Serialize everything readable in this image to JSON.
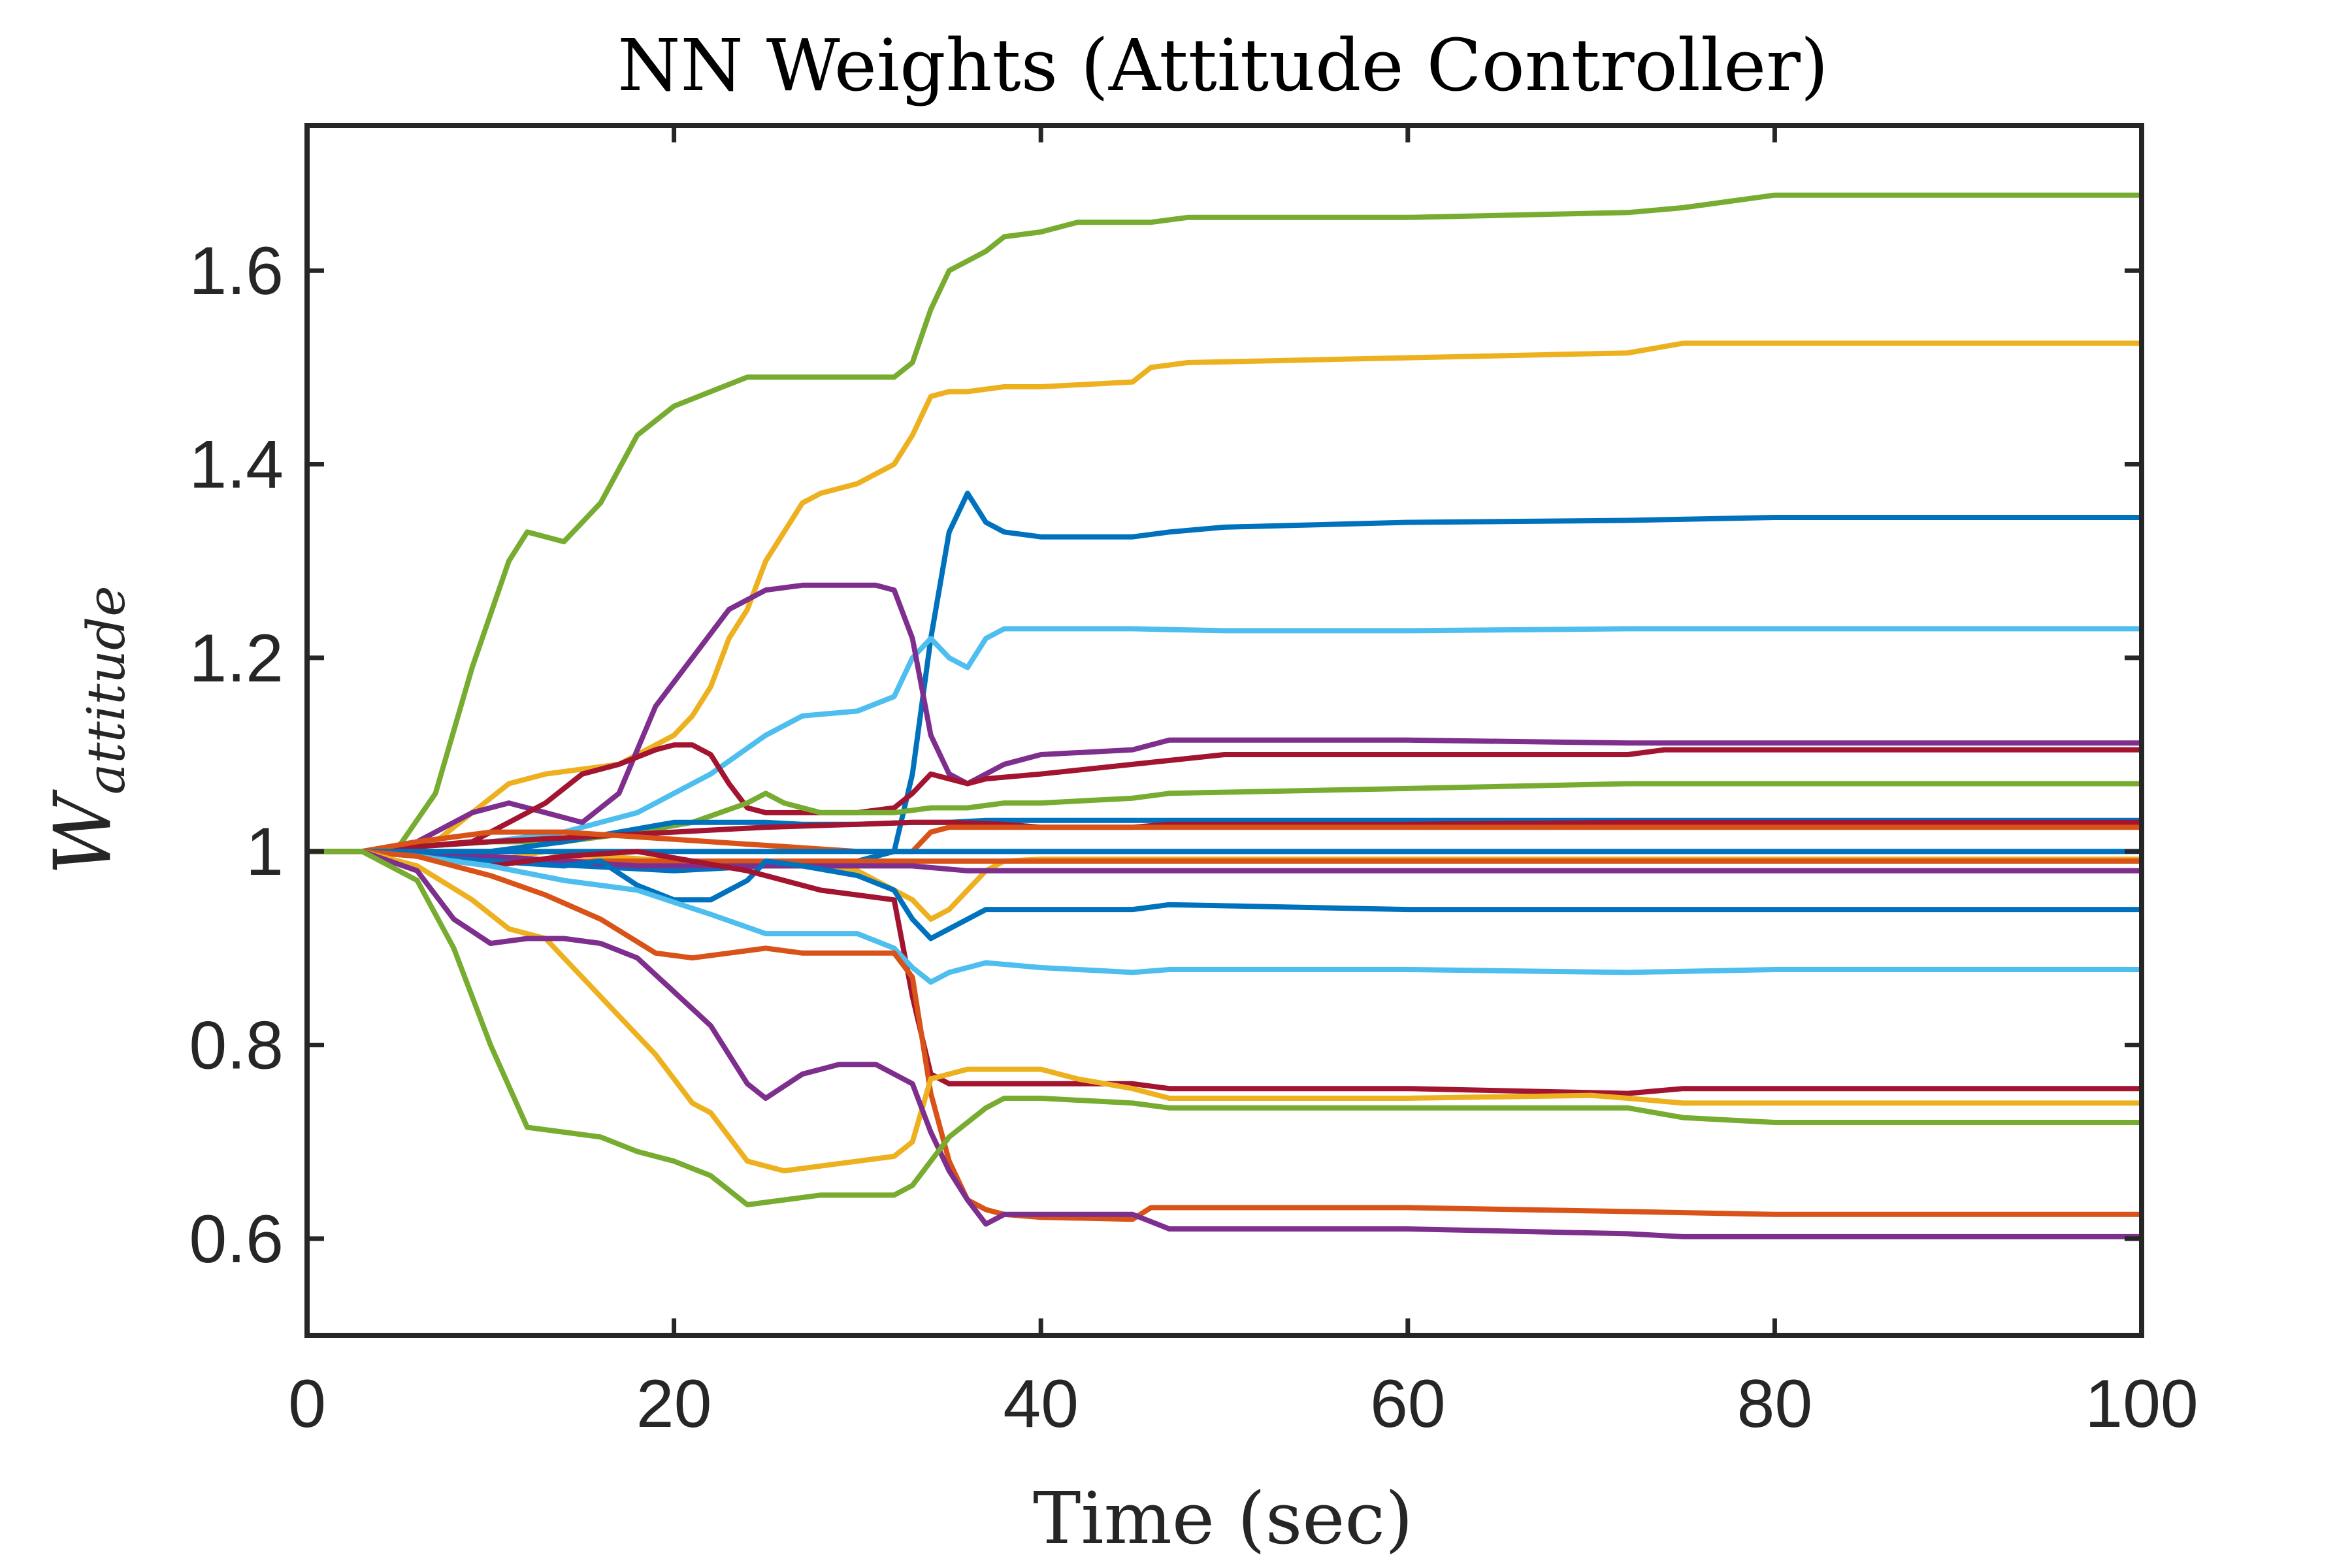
{
  "chart_data": {
    "type": "line",
    "title": "NN Weights (Attitude Controller)",
    "xlabel": "Time (sec)",
    "ylabel": {
      "main": "W",
      "sub": "attitude"
    },
    "xlim": [
      0,
      100
    ],
    "ylim": [
      0.5,
      1.75
    ],
    "xticks": [
      0,
      20,
      40,
      60,
      80,
      100
    ],
    "xtick_labels": [
      "0",
      "20",
      "40",
      "60",
      "80",
      "100"
    ],
    "yticks": [
      0.6,
      0.8,
      1.0,
      1.2,
      1.4,
      1.6
    ],
    "ytick_labels": [
      "0.6",
      "0.8",
      "1",
      "1.2",
      "1.4",
      "1.6"
    ],
    "grid": false,
    "legend": "none",
    "colors": {
      "blue": "#0072BD",
      "orange": "#D95319",
      "yellow": "#EDB120",
      "purple": "#7E2F8E",
      "green": "#77AC30",
      "cyan": "#4DBEEE",
      "red": "#A2142F"
    },
    "series": [
      {
        "color": "green",
        "x": [
          0,
          3,
          5,
          7,
          9,
          11,
          12,
          14,
          16,
          18,
          20,
          22,
          24,
          26,
          28,
          30,
          32,
          33,
          34,
          35,
          36,
          37,
          38,
          40,
          42,
          44,
          46,
          48,
          60,
          72,
          75,
          80,
          100
        ],
        "y": [
          1,
          1,
          1.005,
          1.06,
          1.19,
          1.3,
          1.33,
          1.32,
          1.36,
          1.43,
          1.46,
          1.475,
          1.49,
          1.49,
          1.49,
          1.49,
          1.49,
          1.505,
          1.56,
          1.6,
          1.61,
          1.62,
          1.635,
          1.64,
          1.65,
          1.65,
          1.65,
          1.655,
          1.655,
          1.66,
          1.665,
          1.678,
          1.678
        ]
      },
      {
        "color": "yellow",
        "x": [
          0,
          3,
          5,
          7,
          9,
          11,
          13,
          15,
          17,
          19,
          20,
          21,
          22,
          23,
          24,
          25,
          26,
          27,
          28,
          30,
          32,
          33,
          34,
          35,
          36,
          38,
          40,
          45,
          46,
          48,
          60,
          72,
          75,
          80,
          100
        ],
        "y": [
          1,
          1,
          1.005,
          1.01,
          1.04,
          1.07,
          1.08,
          1.085,
          1.09,
          1.11,
          1.12,
          1.14,
          1.17,
          1.22,
          1.25,
          1.3,
          1.33,
          1.36,
          1.37,
          1.38,
          1.4,
          1.43,
          1.47,
          1.475,
          1.475,
          1.48,
          1.48,
          1.485,
          1.5,
          1.505,
          1.51,
          1.515,
          1.525,
          1.525,
          1.525
        ]
      },
      {
        "color": "blue",
        "x": [
          0,
          3,
          6,
          10,
          15,
          20,
          25,
          30,
          32,
          33,
          34,
          35,
          36,
          37,
          38,
          40,
          45,
          47,
          50,
          60,
          72,
          80,
          100
        ],
        "y": [
          1,
          1,
          0.995,
          0.99,
          0.985,
          0.98,
          0.985,
          0.99,
          1.0,
          1.08,
          1.22,
          1.33,
          1.37,
          1.34,
          1.33,
          1.325,
          1.325,
          1.33,
          1.335,
          1.34,
          1.342,
          1.345,
          1.345
        ]
      },
      {
        "color": "cyan",
        "x": [
          0,
          3,
          6,
          10,
          14,
          18,
          22,
          25,
          27,
          30,
          32,
          33,
          34,
          35,
          36,
          37,
          38,
          40,
          45,
          50,
          60,
          72,
          100
        ],
        "y": [
          1,
          1,
          1.005,
          1.01,
          1.02,
          1.04,
          1.08,
          1.12,
          1.14,
          1.145,
          1.16,
          1.2,
          1.22,
          1.2,
          1.19,
          1.22,
          1.23,
          1.23,
          1.23,
          1.228,
          1.228,
          1.23,
          1.23
        ]
      },
      {
        "color": "purple",
        "x": [
          0,
          3,
          6,
          9,
          11,
          13,
          15,
          17,
          19,
          21,
          23,
          25,
          27,
          29,
          31,
          32,
          33,
          34,
          35,
          36,
          37,
          38,
          40,
          45,
          47,
          60,
          72,
          80,
          100
        ],
        "y": [
          1,
          1,
          1.01,
          1.04,
          1.05,
          1.04,
          1.03,
          1.06,
          1.15,
          1.2,
          1.25,
          1.27,
          1.275,
          1.275,
          1.275,
          1.27,
          1.22,
          1.12,
          1.08,
          1.07,
          1.08,
          1.09,
          1.1,
          1.105,
          1.115,
          1.115,
          1.112,
          1.112,
          1.112
        ]
      },
      {
        "color": "red",
        "x": [
          0,
          3,
          6,
          9,
          11,
          13,
          15,
          17,
          19,
          20,
          21,
          22,
          23,
          24,
          25,
          27,
          30,
          32,
          33,
          34,
          35,
          36,
          37,
          40,
          45,
          50,
          60,
          72,
          74,
          80,
          100
        ],
        "y": [
          1,
          1,
          1.005,
          1.01,
          1.03,
          1.05,
          1.08,
          1.09,
          1.105,
          1.11,
          1.11,
          1.1,
          1.07,
          1.045,
          1.04,
          1.04,
          1.04,
          1.045,
          1.06,
          1.08,
          1.075,
          1.07,
          1.075,
          1.08,
          1.09,
          1.1,
          1.1,
          1.1,
          1.105,
          1.105,
          1.105
        ]
      },
      {
        "color": "green",
        "x": [
          0,
          3,
          6,
          10,
          14,
          18,
          21,
          24,
          25,
          26,
          28,
          30,
          32,
          34,
          36,
          38,
          40,
          45,
          47,
          60,
          72,
          80,
          100
        ],
        "y": [
          1,
          1,
          1.005,
          1.01,
          1.01,
          1.02,
          1.03,
          1.05,
          1.06,
          1.05,
          1.04,
          1.04,
          1.04,
          1.045,
          1.045,
          1.05,
          1.05,
          1.055,
          1.06,
          1.065,
          1.07,
          1.07,
          1.07
        ]
      },
      {
        "color": "blue",
        "x": [
          0,
          3,
          6,
          10,
          14,
          17,
          20,
          23,
          25,
          27,
          30,
          33,
          35,
          37,
          40,
          45,
          50,
          60,
          72,
          80,
          100
        ],
        "y": [
          1,
          1,
          1.0,
          1.0,
          1.01,
          1.02,
          1.03,
          1.03,
          1.03,
          1.028,
          1.028,
          1.03,
          1.03,
          1.032,
          1.032,
          1.032,
          1.032,
          1.032,
          1.032,
          1.032,
          1.032
        ]
      },
      {
        "color": "red",
        "x": [
          0,
          3,
          6,
          10,
          15,
          20,
          25,
          30,
          33,
          35,
          38,
          40,
          45,
          47,
          60,
          72,
          80,
          100
        ],
        "y": [
          1,
          1,
          1.005,
          1.01,
          1.015,
          1.02,
          1.025,
          1.028,
          1.03,
          1.03,
          1.028,
          1.025,
          1.025,
          1.028,
          1.028,
          1.03,
          1.03,
          1.03
        ]
      },
      {
        "color": "orange",
        "x": [
          0,
          3,
          6,
          10,
          14,
          18,
          22,
          26,
          30,
          33,
          34,
          35,
          37,
          40,
          45,
          47,
          60,
          72,
          80,
          100
        ],
        "y": [
          1,
          1,
          1.01,
          1.02,
          1.02,
          1.015,
          1.01,
          1.005,
          1.0,
          1.0,
          1.02,
          1.025,
          1.025,
          1.025,
          1.025,
          1.025,
          1.025,
          1.025,
          1.025,
          1.025
        ]
      },
      {
        "color": "yellow",
        "x": [
          0,
          3,
          6,
          10,
          13,
          16,
          20,
          24,
          27,
          30,
          33,
          34,
          35,
          36,
          37,
          38,
          40,
          45,
          60,
          72,
          100
        ],
        "y": [
          1,
          1,
          0.995,
          0.99,
          1.0,
          0.995,
          0.99,
          0.985,
          0.985,
          0.98,
          0.95,
          0.93,
          0.94,
          0.96,
          0.98,
          0.99,
          0.992,
          0.992,
          0.992,
          0.992,
          0.992
        ]
      },
      {
        "color": "orange",
        "x": [
          0,
          3,
          6,
          10,
          14,
          18,
          22,
          26,
          30,
          33,
          36,
          40,
          45,
          60,
          72,
          100
        ],
        "y": [
          1,
          1,
          0.998,
          0.995,
          0.99,
          0.99,
          0.99,
          0.99,
          0.99,
          0.99,
          0.99,
          0.99,
          0.99,
          0.99,
          0.99,
          0.99
        ]
      },
      {
        "color": "purple",
        "x": [
          0,
          3,
          6,
          10,
          14,
          18,
          22,
          26,
          30,
          33,
          36,
          40,
          45,
          60,
          72,
          100
        ],
        "y": [
          1,
          1,
          0.998,
          0.995,
          0.99,
          0.985,
          0.985,
          0.985,
          0.985,
          0.985,
          0.98,
          0.98,
          0.98,
          0.98,
          0.98,
          0.98
        ]
      },
      {
        "color": "blue",
        "x": [
          0,
          3,
          6,
          10,
          14,
          16,
          18,
          20,
          22,
          24,
          25,
          27,
          30,
          32,
          33,
          34,
          35,
          37,
          40,
          45,
          47,
          60,
          72,
          80,
          100
        ],
        "y": [
          1,
          1,
          0.995,
          0.99,
          0.985,
          0.99,
          0.965,
          0.95,
          0.95,
          0.97,
          0.99,
          0.985,
          0.975,
          0.96,
          0.93,
          0.91,
          0.92,
          0.94,
          0.94,
          0.94,
          0.945,
          0.94,
          0.94,
          0.94,
          0.94
        ]
      },
      {
        "color": "blue",
        "x": [
          0,
          3,
          6,
          10,
          15,
          20,
          25,
          30,
          35,
          40,
          45,
          60,
          72,
          80,
          100
        ],
        "y": [
          1,
          1,
          1,
          1,
          1,
          1,
          1,
          1,
          1,
          1,
          1,
          1,
          1,
          1,
          1
        ]
      },
      {
        "color": "red",
        "x": [
          0,
          3,
          6,
          10,
          14,
          18,
          21,
          24,
          26,
          28,
          30,
          32,
          33,
          34,
          35,
          36,
          38,
          40,
          45,
          47,
          60,
          72,
          75,
          80,
          100
        ],
        "y": [
          1,
          1,
          0.995,
          0.985,
          0.995,
          1.0,
          0.99,
          0.98,
          0.97,
          0.96,
          0.955,
          0.95,
          0.85,
          0.77,
          0.76,
          0.76,
          0.76,
          0.76,
          0.76,
          0.755,
          0.755,
          0.75,
          0.755,
          0.755,
          0.755
        ]
      },
      {
        "color": "cyan",
        "x": [
          0,
          3,
          6,
          10,
          14,
          18,
          22,
          25,
          27,
          30,
          32,
          33,
          34,
          35,
          36,
          37,
          40,
          45,
          47,
          60,
          72,
          80,
          100
        ],
        "y": [
          1,
          1,
          0.995,
          0.985,
          0.97,
          0.96,
          0.935,
          0.915,
          0.915,
          0.915,
          0.9,
          0.88,
          0.865,
          0.875,
          0.88,
          0.885,
          0.88,
          0.875,
          0.878,
          0.878,
          0.875,
          0.878,
          0.878
        ]
      },
      {
        "color": "orange",
        "x": [
          0,
          3,
          6,
          10,
          13,
          16,
          19,
          21,
          23,
          25,
          27,
          30,
          32,
          33,
          34,
          35,
          36,
          37,
          38,
          40,
          45,
          46,
          47,
          60,
          72,
          80,
          100
        ],
        "y": [
          1,
          1,
          0.995,
          0.975,
          0.955,
          0.93,
          0.895,
          0.89,
          0.895,
          0.9,
          0.895,
          0.895,
          0.895,
          0.87,
          0.75,
          0.68,
          0.64,
          0.63,
          0.625,
          0.622,
          0.62,
          0.632,
          0.632,
          0.632,
          0.628,
          0.625,
          0.625
        ]
      },
      {
        "color": "yellow",
        "x": [
          0,
          3,
          6,
          9,
          11,
          13,
          15,
          17,
          19,
          21,
          22,
          24,
          26,
          28,
          30,
          32,
          33,
          34,
          36,
          38,
          40,
          42,
          45,
          47,
          60,
          70,
          72,
          75,
          80,
          100
        ],
        "y": [
          1,
          1,
          0.985,
          0.95,
          0.92,
          0.91,
          0.87,
          0.83,
          0.79,
          0.74,
          0.73,
          0.68,
          0.67,
          0.675,
          0.68,
          0.685,
          0.7,
          0.765,
          0.775,
          0.775,
          0.775,
          0.765,
          0.755,
          0.745,
          0.745,
          0.748,
          0.745,
          0.74,
          0.74,
          0.74
        ]
      },
      {
        "color": "purple",
        "x": [
          0,
          3,
          6,
          8,
          10,
          12,
          14,
          16,
          18,
          20,
          22,
          24,
          25,
          27,
          29,
          31,
          33,
          34,
          35,
          36,
          37,
          38,
          40,
          45,
          47,
          60,
          72,
          75,
          80,
          100
        ],
        "y": [
          1,
          1,
          0.98,
          0.93,
          0.905,
          0.91,
          0.91,
          0.905,
          0.89,
          0.855,
          0.82,
          0.76,
          0.745,
          0.77,
          0.78,
          0.78,
          0.76,
          0.71,
          0.67,
          0.64,
          0.615,
          0.625,
          0.625,
          0.625,
          0.61,
          0.61,
          0.605,
          0.602,
          0.602,
          0.602
        ]
      },
      {
        "color": "green",
        "x": [
          0,
          3,
          6,
          8,
          10,
          12,
          14,
          16,
          18,
          20,
          22,
          24,
          26,
          28,
          30,
          32,
          33,
          34,
          35,
          36,
          37,
          38,
          40,
          45,
          47,
          60,
          72,
          75,
          80,
          100
        ],
        "y": [
          1,
          1,
          0.97,
          0.9,
          0.8,
          0.715,
          0.71,
          0.705,
          0.69,
          0.68,
          0.665,
          0.635,
          0.64,
          0.645,
          0.645,
          0.645,
          0.655,
          0.68,
          0.705,
          0.72,
          0.735,
          0.745,
          0.745,
          0.74,
          0.735,
          0.735,
          0.735,
          0.725,
          0.72,
          0.72
        ]
      }
    ]
  }
}
